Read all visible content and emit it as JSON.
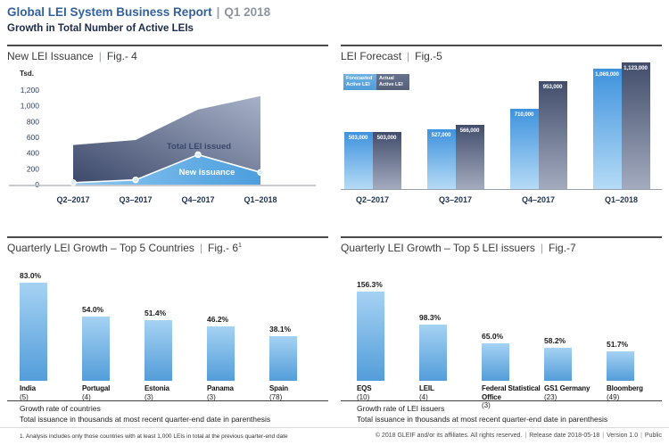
{
  "sep": "|",
  "header": {
    "title": "Global LEI System Business Report",
    "period": "Q1 2018",
    "subtitle": "Growth in Total Number of Active LEIs"
  },
  "colors": {
    "brand_blue": "#33619c",
    "header_gray": "#8f95a0",
    "subtitle_navy": "#1c2b4a",
    "forecast_bar_top": "#3e92dd",
    "forecast_bar_bottom": "#b5dbf6",
    "actual_bar_top": "#414d6b",
    "actual_bar_bottom": "#a3abbf",
    "growth_bar_top": "#a5d2f3",
    "growth_bar_bottom": "#539dd9",
    "total_area_dark": "#3c4869",
    "total_area_light": "#a7b1c8",
    "new_area_left": "#8dc7f0",
    "new_area_right": "#4c9ede"
  },
  "chart_data": [
    {
      "type": "area",
      "title": "New LEI Issuance",
      "fig": "Fig.- 4",
      "unit": "Tsd.",
      "x": [
        "Q2–2017",
        "Q3–2017",
        "Q4–2017",
        "Q1–2018"
      ],
      "yticks": [
        "1,200",
        "1,000",
        "800",
        "600",
        "400",
        "200",
        "0"
      ],
      "ylim": [
        0,
        1200
      ],
      "grid": false,
      "series": [
        {
          "name": "Total LEI issued",
          "values": [
            503,
            566,
            953,
            1123
          ]
        },
        {
          "name": "New issuance",
          "values": [
            25,
            60,
            380,
            155
          ]
        }
      ]
    },
    {
      "type": "bar",
      "title": "LEI Forecast",
      "fig": "Fig.-5",
      "categories": [
        "Q2–2017",
        "Q3–2017",
        "Q4–2017",
        "Q1–2018"
      ],
      "legend_position": "top-left",
      "series": [
        {
          "name": "Forecasted Active LEI",
          "values": [
            503000,
            527000,
            710000,
            1069000
          ],
          "labels": [
            "503,000",
            "527,000",
            "710,000",
            "1,069,000"
          ]
        },
        {
          "name": "Actual Active LEI",
          "values": [
            503000,
            566000,
            953000,
            1123000
          ],
          "labels": [
            "503,000",
            "566,000",
            "953,000",
            "1,123,000"
          ]
        }
      ]
    },
    {
      "type": "bar",
      "title": "Quarterly LEI Growth – Top 5 Countries",
      "fig": "Fig.- 6",
      "fig_sup": "1",
      "categories": [
        "India",
        "Portugal",
        "Estonia",
        "Panama",
        "Spain"
      ],
      "values": [
        83.0,
        54.0,
        51.4,
        46.2,
        38.1
      ],
      "value_labels": [
        "83.0%",
        "54.0%",
        "51.4%",
        "46.2%",
        "38.1%"
      ],
      "counts": [
        "(5)",
        "(4)",
        "(3)",
        "(3)",
        "(78)"
      ],
      "captions": [
        "Growth rate of countries",
        "Total issuance in thousands at most recent quarter-end date in parenthesis"
      ]
    },
    {
      "type": "bar",
      "title": "Quarterly LEI Growth – Top 5 LEI issuers",
      "fig": "Fig.-7",
      "categories": [
        "EQS",
        "LEIL",
        "Federal Statistical Office",
        "GS1 Germany",
        "Bloomberg"
      ],
      "values": [
        156.3,
        98.3,
        65.0,
        58.2,
        51.7
      ],
      "value_labels": [
        "156.3%",
        "98.3%",
        "65.0%",
        "58.2%",
        "51.7%"
      ],
      "counts": [
        "(10)",
        "(4)",
        "(3)",
        "(23)",
        "(49)"
      ],
      "captions": [
        "Growth rate of LEI issuers",
        "Total issuance in thousands at most recent quarter-end date in parenthesis"
      ]
    }
  ],
  "footer": {
    "footnote": "1. Analysis includes only those countries with at least 1,000 LEIs in total at the previous quarter-end date",
    "copyright": "© 2018 GLEIF and/or its affiliates. All rights reserved.",
    "release": "Release date 2018-05-18",
    "version": "Version 1.0",
    "visibility": "Public"
  }
}
